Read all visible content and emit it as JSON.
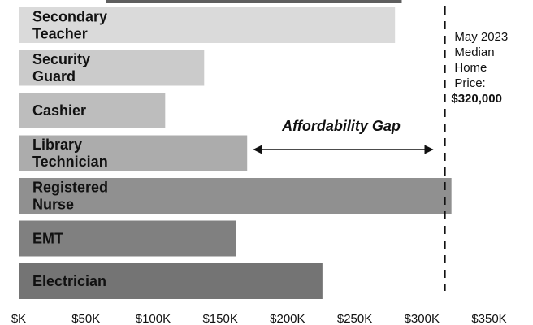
{
  "chart_data": {
    "type": "bar",
    "orientation": "horizontal",
    "categories": [
      [
        "Secondary",
        "Teacher"
      ],
      [
        "Security",
        "Guard"
      ],
      [
        "Cashier"
      ],
      [
        "Library",
        "Technician"
      ],
      [
        "Registered",
        "Nurse"
      ],
      [
        "EMT"
      ],
      [
        "Electrician"
      ]
    ],
    "values": [
      280000,
      138000,
      109000,
      170000,
      322000,
      162000,
      226000
    ],
    "partial_top_bar_value": 285000,
    "bar_colors": [
      "#dadada",
      "#cbcbcb",
      "#bdbdbd",
      "#acacac",
      "#909090",
      "#808080",
      "#747474"
    ],
    "xlim": [
      0,
      350000
    ],
    "x_ticks": [
      0,
      50000,
      100000,
      150000,
      200000,
      250000,
      300000,
      350000
    ],
    "x_tick_labels": [
      "$K",
      "$50K",
      "$100K",
      "$150K",
      "$200K",
      "$250K",
      "$300K",
      "$350K"
    ],
    "reference_line": {
      "value": 320000,
      "style": "dashed",
      "label_lines": [
        "May 2023",
        "Median",
        "Home",
        "Price:"
      ],
      "label_value": "$320,000"
    },
    "annotation": {
      "text": "Affordability Gap",
      "arrow_from": 175000,
      "arrow_to": 308000
    },
    "grid": false,
    "legend": "none"
  }
}
